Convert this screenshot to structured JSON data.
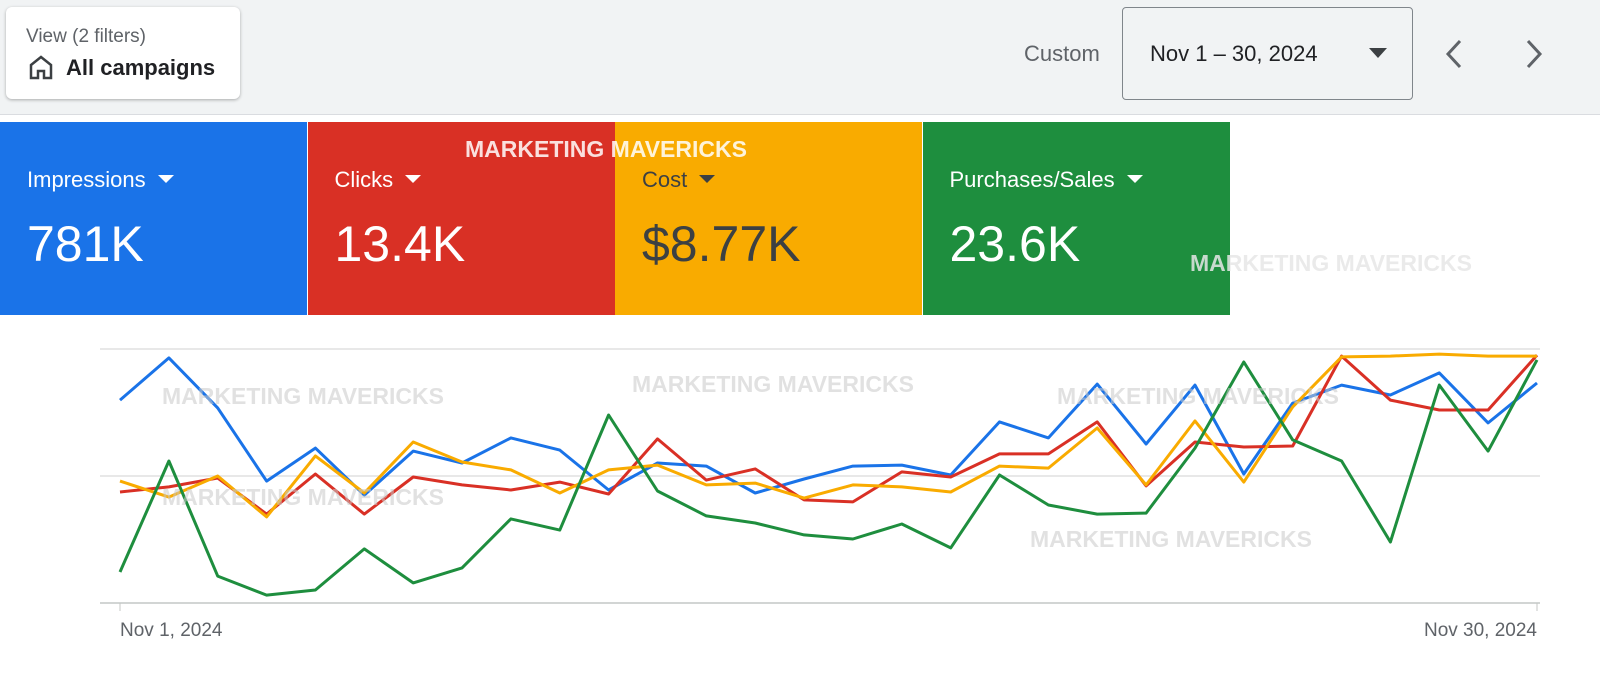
{
  "header": {
    "view_label": "View (2 filters)",
    "view_value": "All campaigns",
    "range_label": "Custom",
    "date_range": "Nov 1 – 30, 2024"
  },
  "watermark": "MARKETING MAVERICKS",
  "chart_data": {
    "type": "line",
    "categories": [
      "Nov 1, 2024",
      null,
      null,
      null,
      null,
      null,
      null,
      null,
      null,
      null,
      null,
      null,
      null,
      null,
      null,
      null,
      null,
      null,
      null,
      null,
      null,
      null,
      null,
      null,
      null,
      null,
      null,
      null,
      null,
      "Nov 30, 2024"
    ],
    "ylim": [
      0,
      100
    ],
    "grid": true,
    "series": [
      {
        "name": "Impressions",
        "summary": "781K",
        "color": "#1a73e8",
        "values": [
          79.9,
          96.5,
          76.8,
          48.0,
          61.0,
          42.5,
          59.8,
          55.1,
          65.0,
          60.2,
          44.5,
          55.1,
          53.9,
          43.3,
          48.8,
          53.9,
          54.3,
          50.4,
          71.3,
          65.0,
          86.2,
          62.6,
          85.8,
          50.8,
          78.7,
          85.8,
          81.9,
          90.6,
          70.9,
          86.6
        ]
      },
      {
        "name": "Clicks",
        "summary": "13.4K",
        "color": "#d93025",
        "values": [
          43.7,
          45.7,
          49.2,
          35.0,
          50.8,
          35.0,
          49.6,
          46.5,
          44.5,
          47.6,
          42.9,
          64.6,
          48.4,
          52.8,
          40.6,
          39.8,
          51.6,
          49.6,
          58.7,
          58.7,
          71.3,
          46.1,
          63.4,
          61.4,
          61.8,
          97.2,
          79.9,
          76.0,
          76.0,
          97.6
        ]
      },
      {
        "name": "Cost",
        "summary": "$8.77K",
        "color": "#f9ab00",
        "values": [
          48.0,
          41.7,
          50.0,
          33.9,
          57.9,
          43.3,
          63.4,
          55.5,
          52.4,
          43.3,
          52.4,
          54.3,
          46.5,
          47.2,
          41.3,
          46.5,
          45.7,
          43.7,
          53.9,
          53.1,
          68.9,
          46.5,
          71.7,
          47.6,
          77.2,
          96.9,
          97.2,
          98.0,
          97.2,
          97.2
        ]
      },
      {
        "name": "Purchases/Sales",
        "summary": "23.6K",
        "color": "#1e8e3e",
        "values": [
          12.2,
          55.9,
          10.6,
          3.1,
          5.1,
          21.3,
          7.9,
          13.8,
          33.1,
          28.7,
          74.0,
          44.1,
          34.3,
          31.5,
          26.8,
          25.2,
          31.1,
          21.7,
          50.4,
          38.6,
          35.0,
          35.4,
          61.0,
          94.9,
          64.2,
          55.9,
          24.0,
          85.8,
          59.8,
          95.7
        ]
      }
    ]
  }
}
